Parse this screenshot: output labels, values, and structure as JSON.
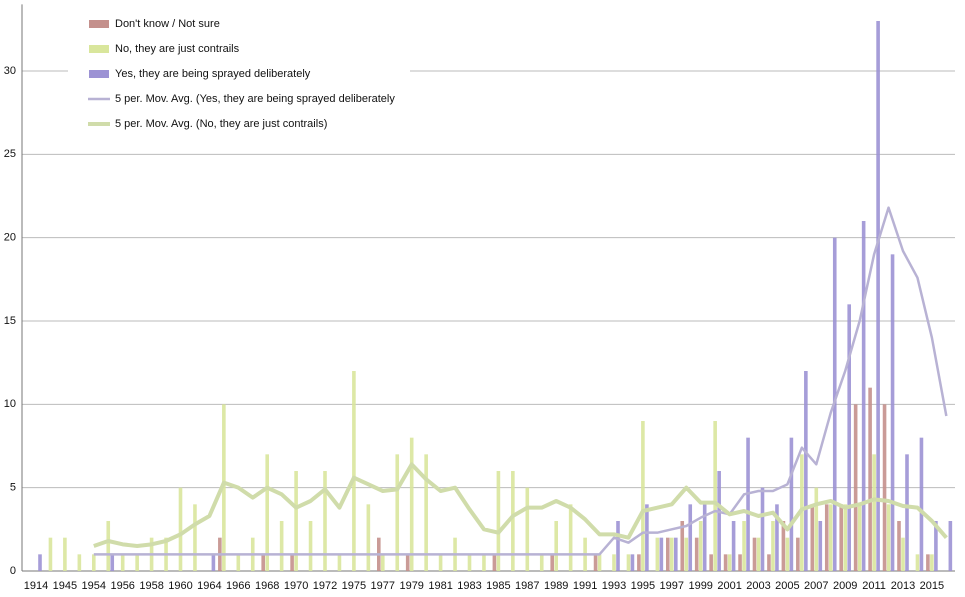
{
  "chart_data": {
    "type": "bar",
    "categories": [
      "1914",
      null,
      "1945",
      null,
      "1954",
      null,
      "1956",
      null,
      "1958",
      null,
      "1960",
      null,
      "1964",
      null,
      "1966",
      null,
      "1968",
      null,
      "1970",
      null,
      "1972",
      null,
      "1975",
      null,
      "1977",
      null,
      "1979",
      null,
      "1981",
      null,
      "1983",
      null,
      "1985",
      null,
      "1987",
      null,
      "1989",
      null,
      "1991",
      null,
      "1993",
      null,
      "1995",
      null,
      "1997",
      null,
      "1999",
      null,
      "2001",
      null,
      "2003",
      null,
      "2005",
      null,
      "2007",
      null,
      "2009",
      null,
      "2011",
      null,
      "2013",
      null,
      "2015",
      null
    ],
    "series": [
      {
        "name": "Don't know / Not sure",
        "color": "#c4908c",
        "values": [
          0,
          0,
          0,
          0,
          0,
          0,
          0,
          0,
          0,
          0,
          0,
          0,
          0,
          2,
          0,
          0,
          1,
          0,
          1,
          0,
          0,
          0,
          0,
          0,
          2,
          0,
          1,
          0,
          0,
          0,
          0,
          0,
          1,
          0,
          0,
          0,
          1,
          0,
          0,
          1,
          0,
          0,
          1,
          0,
          2,
          3,
          2,
          1,
          1,
          1,
          2,
          1,
          3,
          2,
          4,
          4,
          4,
          10,
          11,
          10,
          3,
          0,
          1,
          0
        ]
      },
      {
        "name": "No, they are just contrails",
        "color": "#d9e69c",
        "values": [
          0,
          2,
          2,
          1,
          1,
          3,
          1,
          1,
          2,
          2,
          5,
          4,
          0,
          10,
          1,
          2,
          7,
          3,
          6,
          3,
          6,
          1,
          12,
          4,
          1,
          7,
          8,
          7,
          1,
          2,
          1,
          1,
          6,
          6,
          5,
          1,
          3,
          4,
          2,
          1,
          1,
          1,
          9,
          2,
          2,
          2,
          3,
          9,
          1,
          3,
          2,
          3,
          2,
          7,
          5,
          4,
          4,
          4,
          7,
          4,
          2,
          1,
          1,
          0
        ]
      },
      {
        "name": "Yes, they are being sprayed deliberately",
        "color": "#9c92d4",
        "values": [
          1,
          0,
          0,
          0,
          0,
          1,
          0,
          0,
          0,
          0,
          0,
          0,
          1,
          0,
          0,
          0,
          0,
          0,
          0,
          0,
          0,
          0,
          0,
          0,
          0,
          0,
          0,
          0,
          0,
          0,
          0,
          0,
          0,
          0,
          0,
          0,
          0,
          0,
          0,
          0,
          3,
          1,
          4,
          2,
          2,
          4,
          4,
          6,
          3,
          8,
          5,
          4,
          8,
          12,
          3,
          20,
          16,
          21,
          33,
          19,
          7,
          8,
          3,
          3
        ]
      },
      {
        "name": "5 per. Mov. Avg. (Yes, they are being sprayed deliberately",
        "type": "line",
        "color": "#b8b2d4",
        "values": [
          null,
          null,
          null,
          null,
          1,
          1,
          1,
          1,
          1,
          1,
          1,
          1,
          1,
          1,
          1,
          1,
          1,
          1,
          1,
          1,
          1,
          1,
          1,
          1,
          1,
          1,
          1,
          1,
          1,
          1,
          1,
          1,
          1,
          1,
          1,
          1,
          1,
          1,
          1,
          1,
          2,
          1.7,
          2.3,
          2.3,
          2.5,
          2.7,
          3.2,
          3.6,
          3.4,
          4.6,
          4.8,
          4.8,
          5.2,
          7.4,
          6.4,
          9.5,
          12,
          15,
          19,
          21.8,
          19.2,
          17.6,
          14,
          9.3
        ]
      },
      {
        "name": "5 per. Mov. Avg. (No, they are just contrails)",
        "type": "line",
        "color": "#d0dcaa",
        "values": [
          null,
          null,
          null,
          null,
          1.5,
          1.8,
          1.6,
          1.5,
          1.6,
          1.8,
          2.2,
          2.8,
          3.3,
          5.3,
          5,
          4.4,
          5,
          4.6,
          3.8,
          4.2,
          4.9,
          3.8,
          5.6,
          5.2,
          4.8,
          4.9,
          6.4,
          5.5,
          4.8,
          5,
          3.7,
          2.5,
          2.3,
          3.3,
          3.8,
          3.8,
          4.2,
          3.8,
          3.1,
          2.2,
          2.2,
          2,
          3.6,
          3.8,
          4,
          5,
          4.1,
          4.1,
          3.4,
          3.6,
          3.3,
          3.5,
          2.5,
          3.7,
          4,
          4.2,
          3.8,
          4,
          4.3,
          4.2,
          3.9,
          3.8,
          3,
          2
        ]
      }
    ],
    "ylim": [
      0,
      34
    ],
    "yticks": [
      0,
      5,
      10,
      15,
      20,
      25,
      30
    ],
    "grid": true,
    "legend": "top-left"
  }
}
